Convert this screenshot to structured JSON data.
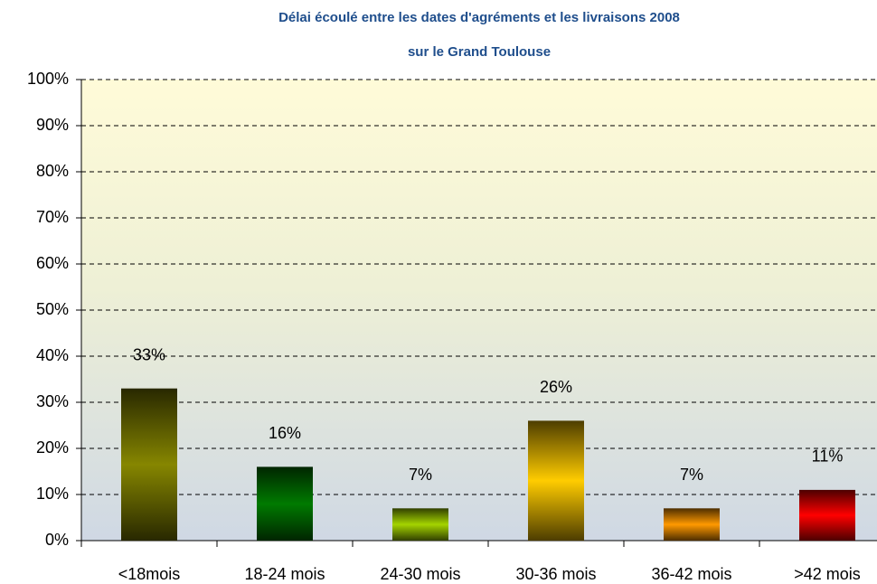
{
  "chart_data": {
    "type": "bar",
    "title": [
      "Délai écoulé entre les dates d'agréments et les livraisons 2008",
      "sur le Grand Toulouse"
    ],
    "categories": [
      "<18mois",
      "18-24 mois",
      "24-30 mois",
      "30-36 mois",
      "36-42 mois",
      ">42 mois"
    ],
    "values": [
      33,
      16,
      7,
      26,
      7,
      11
    ],
    "value_labels": [
      "33%",
      "16%",
      "7%",
      "26%",
      "7%",
      "11%"
    ],
    "colors": [
      "#868600",
      "#007a00",
      "#a4d400",
      "#ffcc00",
      "#ff9900",
      "#ff0000"
    ],
    "ylim": [
      0,
      100
    ],
    "yticks": [
      {
        "value": 0,
        "label": "0%"
      },
      {
        "value": 10,
        "label": "10%"
      },
      {
        "value": 20,
        "label": "20%"
      },
      {
        "value": 30,
        "label": "30%"
      },
      {
        "value": 40,
        "label": "40%"
      },
      {
        "value": 50,
        "label": "50%"
      },
      {
        "value": 60,
        "label": "60%"
      },
      {
        "value": 70,
        "label": "70%"
      },
      {
        "value": 80,
        "label": "80%"
      },
      {
        "value": 90,
        "label": "90%"
      },
      {
        "value": 100,
        "label": "100%"
      }
    ],
    "grid": true
  }
}
